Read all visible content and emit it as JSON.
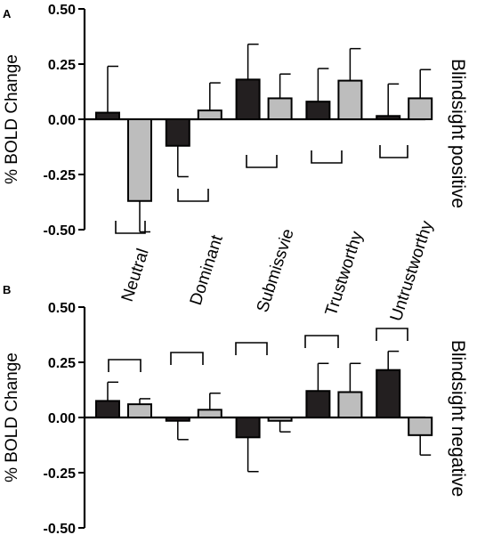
{
  "chart_data": [
    {
      "type": "bar",
      "panel_label": "A",
      "ylabel": "% BOLD Change",
      "side_label": "Blindsight positive",
      "ylim": [
        -0.5,
        0.5
      ],
      "yticks": [
        "0.50",
        "0.25",
        "0.00",
        "-0.25",
        "-0.50"
      ],
      "ytick_values": [
        0.5,
        0.25,
        0,
        -0.25,
        -0.5
      ],
      "categories": [
        "Neutral",
        "Dominant",
        "Submissvie",
        "Trustworthy",
        "Untrustworthy"
      ],
      "series": [
        {
          "color": "#231f20",
          "values": [
            0.03,
            -0.12,
            0.18,
            0.08,
            0.015
          ],
          "errors": [
            0.21,
            0.14,
            0.16,
            0.15,
            0.145
          ]
        },
        {
          "color": "#bdbdbd",
          "values": [
            -0.37,
            0.04,
            0.095,
            0.175,
            0.095
          ],
          "errors": [
            0.14,
            0.125,
            0.11,
            0.145,
            0.13
          ]
        }
      ]
    },
    {
      "type": "bar",
      "panel_label": "B",
      "ylabel": "% BOLD Change",
      "side_label": "Blindsight negative",
      "ylim": [
        -0.5,
        0.5
      ],
      "yticks": [
        "0.50",
        "0.25",
        "0.00",
        "-0.25",
        "-0.50"
      ],
      "ytick_values": [
        0.5,
        0.25,
        0,
        -0.25,
        -0.5
      ],
      "categories": [
        "Neutral",
        "Dominant",
        "Submissvie",
        "Trustworthy",
        "Untrustworthy"
      ],
      "series": [
        {
          "color": "#231f20",
          "values": [
            0.075,
            -0.015,
            -0.09,
            0.12,
            0.215
          ],
          "errors": [
            0.085,
            0.085,
            0.155,
            0.125,
            0.085
          ]
        },
        {
          "color": "#bdbdbd",
          "values": [
            0.06,
            0.035,
            -0.015,
            0.115,
            -0.08
          ],
          "errors": [
            0.025,
            0.075,
            0.05,
            0.13,
            0.09
          ]
        }
      ]
    }
  ]
}
